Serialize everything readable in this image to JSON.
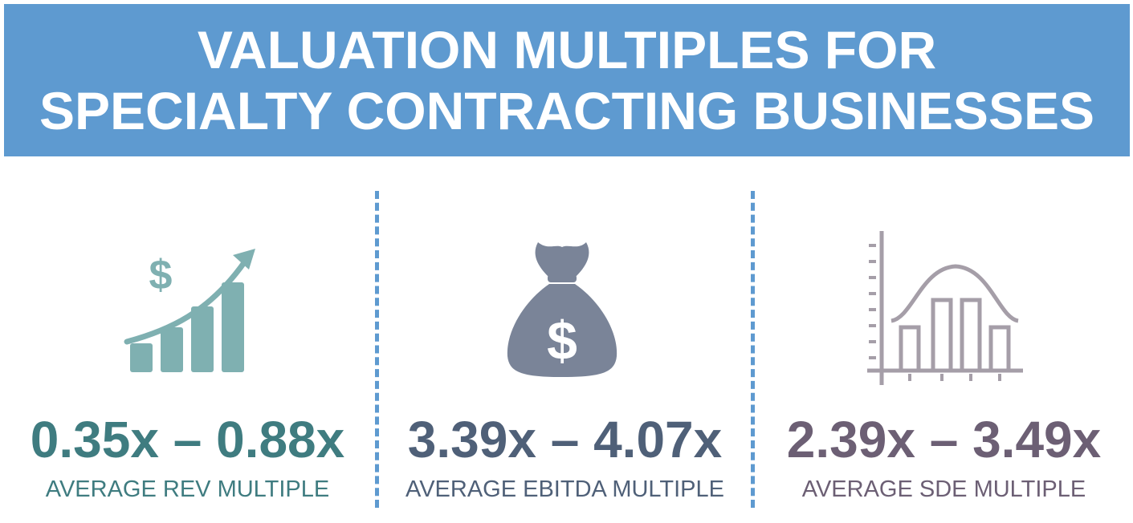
{
  "header": {
    "title_line1": "VALUATION MULTIPLES FOR",
    "title_line2": "SPECIALTY CONTRACTING BUSINESSES",
    "background_color": "#5e9ad0",
    "text_color": "#ffffff"
  },
  "metrics": [
    {
      "icon": "revenue-growth-icon",
      "range": "0.35x – 0.88x",
      "label": "AVERAGE REV MULTIPLE",
      "color": "#3f7c80",
      "icon_color": "#7fb0b1"
    },
    {
      "icon": "money-bag-icon",
      "range": "3.39x – 4.07x",
      "label": "AVERAGE EBITDA MULTIPLE",
      "color": "#4f6078",
      "icon_color": "#7a8498"
    },
    {
      "icon": "bell-curve-chart-icon",
      "range": "2.39x – 3.49x",
      "label": "AVERAGE SDE MULTIPLE",
      "color": "#6c5f74",
      "icon_color": "#a59ea8"
    }
  ],
  "divider_color": "#5e9ad0"
}
